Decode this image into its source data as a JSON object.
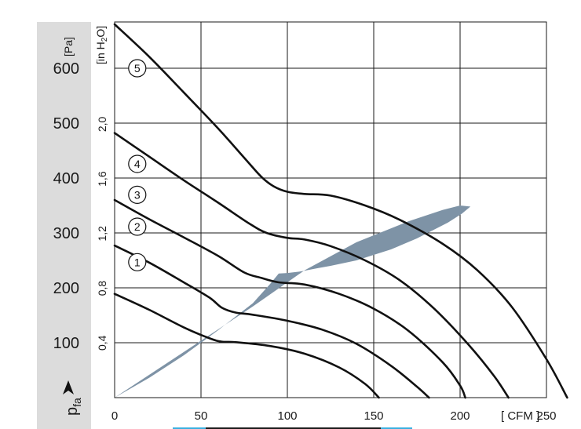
{
  "chart_data": {
    "type": "line",
    "x_axis": {
      "range": [
        0,
        250
      ],
      "ticks": [
        0,
        50,
        100,
        150,
        200,
        250
      ],
      "unit_label": "[ CFM ]"
    },
    "y_axis_pa": {
      "range": [
        0,
        700
      ],
      "ticks": [
        100,
        200,
        300,
        400,
        500,
        600
      ],
      "unit_label": "[Pa]",
      "axis_label": "p",
      "axis_label_sub": "fa"
    },
    "y_axis_inh2o": {
      "ticks": [
        "0,4",
        "0,8",
        "1,2",
        "1,6",
        "2,0"
      ],
      "tick_values_pa": [
        99.6,
        199.2,
        298.8,
        398.4,
        498.0
      ],
      "unit_label": "[in H",
      "unit_sub": "2",
      "unit_end": "O]"
    },
    "series": [
      {
        "label": "1",
        "points": [
          [
            0,
            189
          ],
          [
            20,
            160
          ],
          [
            40,
            128
          ],
          [
            55,
            108
          ],
          [
            62,
            102
          ],
          [
            70,
            101
          ],
          [
            90,
            94
          ],
          [
            110,
            80
          ],
          [
            130,
            55
          ],
          [
            145,
            25
          ],
          [
            153,
            0
          ]
        ]
      },
      {
        "label": "2",
        "points": [
          [
            0,
            277
          ],
          [
            20,
            246
          ],
          [
            40,
            210
          ],
          [
            55,
            182
          ],
          [
            62,
            164
          ],
          [
            70,
            155
          ],
          [
            80,
            151
          ],
          [
            100,
            140
          ],
          [
            120,
            124
          ],
          [
            140,
            98
          ],
          [
            160,
            58
          ],
          [
            175,
            20
          ],
          [
            182,
            0
          ]
        ]
      },
      {
        "label": "3",
        "points": [
          [
            0,
            360
          ],
          [
            20,
            325
          ],
          [
            40,
            292
          ],
          [
            60,
            258
          ],
          [
            75,
            228
          ],
          [
            85,
            218
          ],
          [
            95,
            210
          ],
          [
            110,
            206
          ],
          [
            130,
            189
          ],
          [
            150,
            162
          ],
          [
            170,
            122
          ],
          [
            190,
            64
          ],
          [
            200,
            22
          ],
          [
            203,
            0
          ]
        ]
      },
      {
        "label": "4",
        "points": [
          [
            0,
            482
          ],
          [
            20,
            439
          ],
          [
            40,
            396
          ],
          [
            60,
            355
          ],
          [
            78,
            317
          ],
          [
            88,
            300
          ],
          [
            100,
            291
          ],
          [
            110,
            288
          ],
          [
            125,
            276
          ],
          [
            145,
            250
          ],
          [
            165,
            214
          ],
          [
            185,
            162
          ],
          [
            205,
            96
          ],
          [
            220,
            38
          ],
          [
            228,
            0
          ]
        ]
      },
      {
        "label": "5",
        "points": [
          [
            0,
            680
          ],
          [
            20,
            621
          ],
          [
            40,
            556
          ],
          [
            60,
            490
          ],
          [
            75,
            437
          ],
          [
            85,
            402
          ],
          [
            92,
            385
          ],
          [
            100,
            375
          ],
          [
            110,
            371
          ],
          [
            125,
            368
          ],
          [
            145,
            350
          ],
          [
            165,
            324
          ],
          [
            190,
            280
          ],
          [
            210,
            232
          ],
          [
            230,
            165
          ],
          [
            250,
            70
          ],
          [
            262,
            0
          ]
        ]
      }
    ],
    "operating_region": {
      "polygon": [
        [
          0,
          0
        ],
        [
          40,
          83
        ],
        [
          80,
          166
        ],
        [
          110,
          232
        ],
        [
          140,
          283
        ],
        [
          170,
          321
        ],
        [
          190,
          342
        ],
        [
          200,
          350
        ],
        [
          206,
          348
        ],
        [
          201,
          335
        ],
        [
          193,
          319
        ],
        [
          185,
          306
        ],
        [
          175,
          290
        ],
        [
          160,
          270
        ],
        [
          140,
          250
        ],
        [
          125,
          240
        ],
        [
          118,
          236
        ],
        [
          108,
          230
        ],
        [
          100,
          227
        ],
        [
          95,
          226
        ],
        [
          90,
          207
        ],
        [
          80,
          172
        ],
        [
          60,
          123
        ],
        [
          40,
          77
        ],
        [
          20,
          36
        ],
        [
          0,
          0
        ]
      ],
      "color": "#7e93a6"
    },
    "curve_label_positions": [
      [
        14,
        412
      ],
      [
        14,
        520
      ],
      [
        14,
        617
      ],
      [
        14,
        711
      ],
      [
        14,
        1002
      ]
    ],
    "gridlines": true
  }
}
